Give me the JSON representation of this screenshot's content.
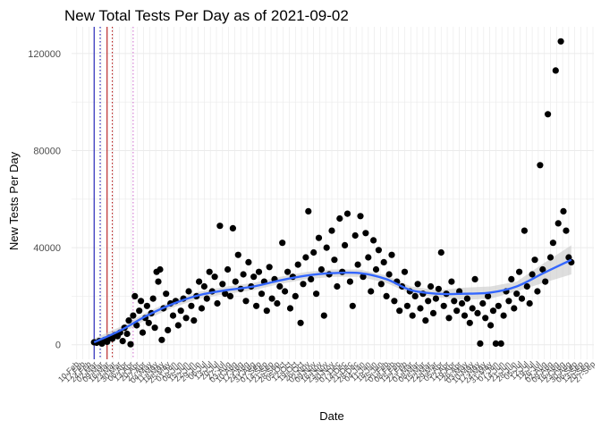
{
  "chart_data": {
    "type": "scatter",
    "title": "New Total Tests Per Day as of 2021-09-02",
    "xlabel": "Date",
    "ylabel": "New Tests Per Day",
    "xlim": [
      "2020-02-04",
      "2021-09-28"
    ],
    "ylim": [
      -6000,
      131000
    ],
    "yticks": [
      0,
      40000,
      80000,
      120000
    ],
    "ytick_labels": [
      "0",
      "40000",
      "80000",
      "120000"
    ],
    "grid": true,
    "legend": "none",
    "colors": {
      "points": "#000000",
      "smooth_line": "#3366ff",
      "confidence_band": "#c8c8c8",
      "vline_solid_1": "#0000b0",
      "vline_solid_2": "#b00000",
      "vline_dotted_1": "#0000b0",
      "vline_dotted_2": "#b00000",
      "vline_dotted_3": "#cc66cc"
    },
    "vlines": [
      {
        "date": "2020-03-01",
        "style": "solid",
        "color": "#0000b0"
      },
      {
        "date": "2020-03-08",
        "style": "dotted",
        "color": "#0000b0"
      },
      {
        "date": "2020-03-16",
        "style": "solid",
        "color": "#b00000"
      },
      {
        "date": "2020-03-22",
        "style": "dotted",
        "color": "#b00000"
      },
      {
        "date": "2020-04-15",
        "style": "dotted",
        "color": "#cc66cc"
      }
    ],
    "xtick_labels": [
      "10-Feb",
      "17-Feb",
      "24-Feb",
      "02-Mar",
      "09-Mar",
      "16-Mar",
      "23-Mar",
      "30-Mar",
      "06-Apr",
      "13-Apr",
      "20-Apr",
      "27-Apr",
      "04-May",
      "11-May",
      "18-May",
      "25-May",
      "01-Jun",
      "08-Jun",
      "15-Jun",
      "22-Jun",
      "29-Jun",
      "06-Jul",
      "13-Jul",
      "20-Jul",
      "27-Jul",
      "03-Aug",
      "10-Aug",
      "17-Aug",
      "24-Aug",
      "31-Aug",
      "07-Sep",
      "14-Sep",
      "21-Sep",
      "28-Sep",
      "05-Oct",
      "12-Oct",
      "19-Oct",
      "26-Oct",
      "02-Nov",
      "09-Nov",
      "16-Nov",
      "23-Nov",
      "30-Nov",
      "07-Dec",
      "14-Dec",
      "21-Dec",
      "28-Dec",
      "04-Jan",
      "11-Jan",
      "18-Jan",
      "25-Jan",
      "01-Feb",
      "08-Feb",
      "15-Feb",
      "22-Feb",
      "01-Mar",
      "08-Mar",
      "15-Mar",
      "22-Mar",
      "29-Mar",
      "05-Apr",
      "12-Apr",
      "19-Apr",
      "26-Apr",
      "03-May",
      "10-May",
      "17-May",
      "24-May",
      "31-May",
      "07-Jun",
      "14-Jun",
      "21-Jun",
      "28-Jun",
      "05-Jul",
      "12-Jul",
      "19-Jul",
      "26-Jul",
      "02-Aug",
      "09-Aug",
      "16-Aug",
      "23-Aug",
      "30-Aug",
      "06-Sep",
      "13-Sep",
      "20-Sep",
      "27-Sep"
    ],
    "smooth_trend": [
      {
        "x": "2020-03-01",
        "y": 1000
      },
      {
        "x": "2020-04-01",
        "y": 6000
      },
      {
        "x": "2020-05-01",
        "y": 12000
      },
      {
        "x": "2020-06-01",
        "y": 17000
      },
      {
        "x": "2020-07-01",
        "y": 20500
      },
      {
        "x": "2020-08-01",
        "y": 22500
      },
      {
        "x": "2020-09-01",
        "y": 24000
      },
      {
        "x": "2020-10-01",
        "y": 26500
      },
      {
        "x": "2020-11-01",
        "y": 28500
      },
      {
        "x": "2020-12-01",
        "y": 29500
      },
      {
        "x": "2021-01-01",
        "y": 29500
      },
      {
        "x": "2021-02-01",
        "y": 27000
      },
      {
        "x": "2021-03-01",
        "y": 22500
      },
      {
        "x": "2021-04-01",
        "y": 21000
      },
      {
        "x": "2021-05-01",
        "y": 21000
      },
      {
        "x": "2021-06-01",
        "y": 21500
      },
      {
        "x": "2021-07-01",
        "y": 24000
      },
      {
        "x": "2021-08-01",
        "y": 29500
      },
      {
        "x": "2021-09-02",
        "y": 35000
      }
    ],
    "series": [
      {
        "points": [
          {
            "x": "2020-03-01",
            "y": 1000
          },
          {
            "x": "2020-03-04",
            "y": 800
          },
          {
            "x": "2020-03-07",
            "y": 1500
          },
          {
            "x": "2020-03-10",
            "y": 500
          },
          {
            "x": "2020-03-13",
            "y": 2000
          },
          {
            "x": "2020-03-16",
            "y": 1200
          },
          {
            "x": "2020-03-19",
            "y": 3000
          },
          {
            "x": "2020-03-22",
            "y": 2500
          },
          {
            "x": "2020-03-25",
            "y": 4000
          },
          {
            "x": "2020-03-28",
            "y": 3500
          },
          {
            "x": "2020-03-31",
            "y": 5000
          },
          {
            "x": "2020-04-03",
            "y": 1500
          },
          {
            "x": "2020-04-05",
            "y": 7000
          },
          {
            "x": "2020-04-08",
            "y": 4500
          },
          {
            "x": "2020-04-10",
            "y": 10000
          },
          {
            "x": "2020-04-12",
            "y": 200
          },
          {
            "x": "2020-04-15",
            "y": 12000
          },
          {
            "x": "2020-04-17",
            "y": 20000
          },
          {
            "x": "2020-04-19",
            "y": 8000
          },
          {
            "x": "2020-04-22",
            "y": 14000
          },
          {
            "x": "2020-04-24",
            "y": 18000
          },
          {
            "x": "2020-04-26",
            "y": 5000
          },
          {
            "x": "2020-04-29",
            "y": 11000
          },
          {
            "x": "2020-05-01",
            "y": 16000
          },
          {
            "x": "2020-05-03",
            "y": 9000
          },
          {
            "x": "2020-05-06",
            "y": 13000
          },
          {
            "x": "2020-05-08",
            "y": 19000
          },
          {
            "x": "2020-05-10",
            "y": 7000
          },
          {
            "x": "2020-05-12",
            "y": 30000
          },
          {
            "x": "2020-05-14",
            "y": 26000
          },
          {
            "x": "2020-05-16",
            "y": 31000
          },
          {
            "x": "2020-05-18",
            "y": 2000
          },
          {
            "x": "2020-05-20",
            "y": 15000
          },
          {
            "x": "2020-05-23",
            "y": 21000
          },
          {
            "x": "2020-05-25",
            "y": 6000
          },
          {
            "x": "2020-05-28",
            "y": 17000
          },
          {
            "x": "2020-05-31",
            "y": 12000
          },
          {
            "x": "2020-06-03",
            "y": 18000
          },
          {
            "x": "2020-06-06",
            "y": 8000
          },
          {
            "x": "2020-06-09",
            "y": 14000
          },
          {
            "x": "2020-06-12",
            "y": 19000
          },
          {
            "x": "2020-06-15",
            "y": 11000
          },
          {
            "x": "2020-06-18",
            "y": 22000
          },
          {
            "x": "2020-06-21",
            "y": 16000
          },
          {
            "x": "2020-06-24",
            "y": 10000
          },
          {
            "x": "2020-06-27",
            "y": 20000
          },
          {
            "x": "2020-06-30",
            "y": 26000
          },
          {
            "x": "2020-07-03",
            "y": 15000
          },
          {
            "x": "2020-07-06",
            "y": 24000
          },
          {
            "x": "2020-07-09",
            "y": 19000
          },
          {
            "x": "2020-07-12",
            "y": 30000
          },
          {
            "x": "2020-07-15",
            "y": 22000
          },
          {
            "x": "2020-07-18",
            "y": 28000
          },
          {
            "x": "2020-07-21",
            "y": 17000
          },
          {
            "x": "2020-07-24",
            "y": 49000
          },
          {
            "x": "2020-07-27",
            "y": 25000
          },
          {
            "x": "2020-07-30",
            "y": 21000
          },
          {
            "x": "2020-08-02",
            "y": 31000
          },
          {
            "x": "2020-08-05",
            "y": 20000
          },
          {
            "x": "2020-08-08",
            "y": 48000
          },
          {
            "x": "2020-08-11",
            "y": 26000
          },
          {
            "x": "2020-08-14",
            "y": 37000
          },
          {
            "x": "2020-08-17",
            "y": 23000
          },
          {
            "x": "2020-08-20",
            "y": 29000
          },
          {
            "x": "2020-08-23",
            "y": 18000
          },
          {
            "x": "2020-08-26",
            "y": 34000
          },
          {
            "x": "2020-08-29",
            "y": 24000
          },
          {
            "x": "2020-09-01",
            "y": 28000
          },
          {
            "x": "2020-09-04",
            "y": 16000
          },
          {
            "x": "2020-09-07",
            "y": 30000
          },
          {
            "x": "2020-09-10",
            "y": 21000
          },
          {
            "x": "2020-09-13",
            "y": 26000
          },
          {
            "x": "2020-09-16",
            "y": 14000
          },
          {
            "x": "2020-09-19",
            "y": 32000
          },
          {
            "x": "2020-09-22",
            "y": 19000
          },
          {
            "x": "2020-09-25",
            "y": 27000
          },
          {
            "x": "2020-09-28",
            "y": 17000
          },
          {
            "x": "2020-10-01",
            "y": 24000
          },
          {
            "x": "2020-10-04",
            "y": 42000
          },
          {
            "x": "2020-10-07",
            "y": 22000
          },
          {
            "x": "2020-10-10",
            "y": 30000
          },
          {
            "x": "2020-10-13",
            "y": 15000
          },
          {
            "x": "2020-10-16",
            "y": 28000
          },
          {
            "x": "2020-10-19",
            "y": 20000
          },
          {
            "x": "2020-10-22",
            "y": 33000
          },
          {
            "x": "2020-10-25",
            "y": 9000
          },
          {
            "x": "2020-10-28",
            "y": 25000
          },
          {
            "x": "2020-10-31",
            "y": 36000
          },
          {
            "x": "2020-11-03",
            "y": 55000
          },
          {
            "x": "2020-11-06",
            "y": 27000
          },
          {
            "x": "2020-11-09",
            "y": 38000
          },
          {
            "x": "2020-11-12",
            "y": 21000
          },
          {
            "x": "2020-11-15",
            "y": 44000
          },
          {
            "x": "2020-11-18",
            "y": 31000
          },
          {
            "x": "2020-11-21",
            "y": 12000
          },
          {
            "x": "2020-11-24",
            "y": 40000
          },
          {
            "x": "2020-11-27",
            "y": 29000
          },
          {
            "x": "2020-11-30",
            "y": 47000
          },
          {
            "x": "2020-12-03",
            "y": 35000
          },
          {
            "x": "2020-12-06",
            "y": 24000
          },
          {
            "x": "2020-12-09",
            "y": 52000
          },
          {
            "x": "2020-12-12",
            "y": 30000
          },
          {
            "x": "2020-12-15",
            "y": 41000
          },
          {
            "x": "2020-12-18",
            "y": 54000
          },
          {
            "x": "2020-12-21",
            "y": 26000
          },
          {
            "x": "2020-12-24",
            "y": 16000
          },
          {
            "x": "2020-12-27",
            "y": 45000
          },
          {
            "x": "2020-12-30",
            "y": 33000
          },
          {
            "x": "2021-01-02",
            "y": 53000
          },
          {
            "x": "2021-01-05",
            "y": 28000
          },
          {
            "x": "2021-01-08",
            "y": 46000
          },
          {
            "x": "2021-01-11",
            "y": 36000
          },
          {
            "x": "2021-01-14",
            "y": 22000
          },
          {
            "x": "2021-01-17",
            "y": 43000
          },
          {
            "x": "2021-01-20",
            "y": 31000
          },
          {
            "x": "2021-01-23",
            "y": 39000
          },
          {
            "x": "2021-01-26",
            "y": 25000
          },
          {
            "x": "2021-01-29",
            "y": 34000
          },
          {
            "x": "2021-02-01",
            "y": 20000
          },
          {
            "x": "2021-02-04",
            "y": 29000
          },
          {
            "x": "2021-02-07",
            "y": 37000
          },
          {
            "x": "2021-02-10",
            "y": 18000
          },
          {
            "x": "2021-02-13",
            "y": 26000
          },
          {
            "x": "2021-02-16",
            "y": 14000
          },
          {
            "x": "2021-02-19",
            "y": 24000
          },
          {
            "x": "2021-02-22",
            "y": 30000
          },
          {
            "x": "2021-02-25",
            "y": 16000
          },
          {
            "x": "2021-02-28",
            "y": 22000
          },
          {
            "x": "2021-03-03",
            "y": 12000
          },
          {
            "x": "2021-03-06",
            "y": 20000
          },
          {
            "x": "2021-03-09",
            "y": 25000
          },
          {
            "x": "2021-03-12",
            "y": 15000
          },
          {
            "x": "2021-03-15",
            "y": 21000
          },
          {
            "x": "2021-03-18",
            "y": 10000
          },
          {
            "x": "2021-03-21",
            "y": 18000
          },
          {
            "x": "2021-03-24",
            "y": 24000
          },
          {
            "x": "2021-03-27",
            "y": 13000
          },
          {
            "x": "2021-03-30",
            "y": 19000
          },
          {
            "x": "2021-04-02",
            "y": 23000
          },
          {
            "x": "2021-04-05",
            "y": 38000
          },
          {
            "x": "2021-04-08",
            "y": 16000
          },
          {
            "x": "2021-04-11",
            "y": 21000
          },
          {
            "x": "2021-04-14",
            "y": 11000
          },
          {
            "x": "2021-04-17",
            "y": 26000
          },
          {
            "x": "2021-04-20",
            "y": 18000
          },
          {
            "x": "2021-04-23",
            "y": 14000
          },
          {
            "x": "2021-04-26",
            "y": 22000
          },
          {
            "x": "2021-04-29",
            "y": 17000
          },
          {
            "x": "2021-05-02",
            "y": 12000
          },
          {
            "x": "2021-05-05",
            "y": 19000
          },
          {
            "x": "2021-05-08",
            "y": 9000
          },
          {
            "x": "2021-05-11",
            "y": 15000
          },
          {
            "x": "2021-05-14",
            "y": 27000
          },
          {
            "x": "2021-05-17",
            "y": 13000
          },
          {
            "x": "2021-05-20",
            "y": 500
          },
          {
            "x": "2021-05-23",
            "y": 17000
          },
          {
            "x": "2021-05-26",
            "y": 11000
          },
          {
            "x": "2021-05-29",
            "y": 20000
          },
          {
            "x": "2021-06-01",
            "y": 8000
          },
          {
            "x": "2021-06-04",
            "y": 14000
          },
          {
            "x": "2021-06-07",
            "y": 500
          },
          {
            "x": "2021-06-10",
            "y": 16000
          },
          {
            "x": "2021-06-13",
            "y": 500
          },
          {
            "x": "2021-06-16",
            "y": 12000
          },
          {
            "x": "2021-06-19",
            "y": 22000
          },
          {
            "x": "2021-06-22",
            "y": 18000
          },
          {
            "x": "2021-06-25",
            "y": 27000
          },
          {
            "x": "2021-06-28",
            "y": 15000
          },
          {
            "x": "2021-07-01",
            "y": 21000
          },
          {
            "x": "2021-07-04",
            "y": 30000
          },
          {
            "x": "2021-07-07",
            "y": 19000
          },
          {
            "x": "2021-07-10",
            "y": 47000
          },
          {
            "x": "2021-07-13",
            "y": 24000
          },
          {
            "x": "2021-07-16",
            "y": 17000
          },
          {
            "x": "2021-07-19",
            "y": 29000
          },
          {
            "x": "2021-07-22",
            "y": 35000
          },
          {
            "x": "2021-07-25",
            "y": 22000
          },
          {
            "x": "2021-07-28",
            "y": 74000
          },
          {
            "x": "2021-07-31",
            "y": 31000
          },
          {
            "x": "2021-08-03",
            "y": 26000
          },
          {
            "x": "2021-08-06",
            "y": 95000
          },
          {
            "x": "2021-08-09",
            "y": 36000
          },
          {
            "x": "2021-08-12",
            "y": 42000
          },
          {
            "x": "2021-08-15",
            "y": 113000
          },
          {
            "x": "2021-08-18",
            "y": 50000
          },
          {
            "x": "2021-08-21",
            "y": 125000
          },
          {
            "x": "2021-08-24",
            "y": 55000
          },
          {
            "x": "2021-08-27",
            "y": 47000
          },
          {
            "x": "2021-08-30",
            "y": 36000
          },
          {
            "x": "2021-09-02",
            "y": 34000
          }
        ]
      }
    ]
  }
}
